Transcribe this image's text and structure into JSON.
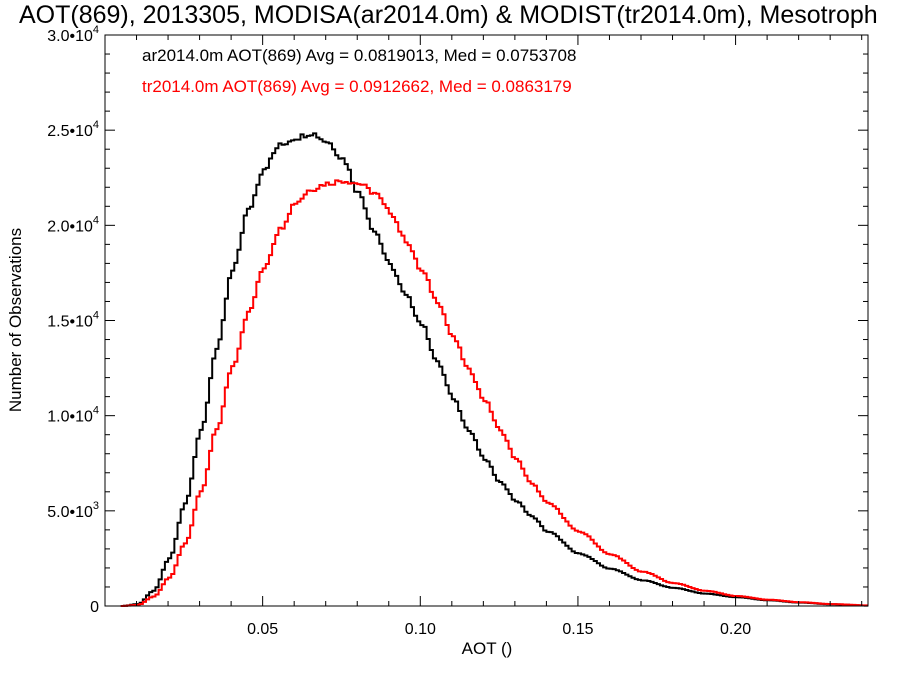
{
  "chart_data": {
    "type": "line",
    "title": "AOT(869), 2013305, MODISA(ar2014.0m) & MODIST(tr2014.0m), Mesotroph",
    "xlabel": "AOT ()",
    "ylabel": "Number of Observations",
    "xlim": [
      0.0,
      0.242
    ],
    "ylim": [
      0,
      30000
    ],
    "xticks": [
      {
        "value": 0.05,
        "label": "0.05"
      },
      {
        "value": 0.1,
        "label": "0.10"
      },
      {
        "value": 0.15,
        "label": "0.15"
      },
      {
        "value": 0.2,
        "label": "0.20"
      }
    ],
    "yticks": [
      {
        "value": 0,
        "base": "0",
        "exp": ""
      },
      {
        "value": 5000,
        "base": "5.0•10",
        "exp": "3"
      },
      {
        "value": 10000,
        "base": "1.0•10",
        "exp": "4"
      },
      {
        "value": 15000,
        "base": "1.5•10",
        "exp": "4"
      },
      {
        "value": 20000,
        "base": "2.0•10",
        "exp": "4"
      },
      {
        "value": 25000,
        "base": "2.5•10",
        "exp": "4"
      },
      {
        "value": 30000,
        "base": "3.0•10",
        "exp": "4"
      }
    ],
    "grid": false,
    "legend_placement": "top-left",
    "series": [
      {
        "name": "ar2014.0m AOT(869) Avg = 0.0819013, Med = 0.0753708",
        "color": "#000000",
        "step": true,
        "x": [
          0.005,
          0.01,
          0.015,
          0.02,
          0.025,
          0.03,
          0.035,
          0.04,
          0.045,
          0.05,
          0.055,
          0.06,
          0.065,
          0.07,
          0.075,
          0.08,
          0.085,
          0.09,
          0.095,
          0.1,
          0.105,
          0.11,
          0.115,
          0.12,
          0.125,
          0.13,
          0.135,
          0.14,
          0.15,
          0.16,
          0.17,
          0.18,
          0.19,
          0.2,
          0.21,
          0.22,
          0.23,
          0.242
        ],
        "y": [
          0,
          100,
          800,
          2500,
          5400,
          9200,
          13500,
          17600,
          20800,
          23000,
          24200,
          24600,
          24850,
          24400,
          23500,
          21700,
          19700,
          17900,
          16300,
          14800,
          12800,
          10900,
          9200,
          7700,
          6500,
          5500,
          4700,
          3900,
          2750,
          1950,
          1350,
          950,
          650,
          460,
          300,
          180,
          90,
          20
        ]
      },
      {
        "name": "tr2014.0m AOT(869) Avg = 0.0912662, Med = 0.0863179",
        "color": "#ff0000",
        "step": true,
        "x": [
          0.005,
          0.01,
          0.015,
          0.02,
          0.025,
          0.03,
          0.035,
          0.04,
          0.045,
          0.05,
          0.055,
          0.06,
          0.065,
          0.07,
          0.075,
          0.08,
          0.085,
          0.09,
          0.095,
          0.1,
          0.105,
          0.11,
          0.115,
          0.12,
          0.125,
          0.13,
          0.135,
          0.14,
          0.15,
          0.16,
          0.17,
          0.18,
          0.19,
          0.2,
          0.21,
          0.22,
          0.23,
          0.242
        ],
        "y": [
          0,
          60,
          500,
          1500,
          3300,
          6000,
          9300,
          12600,
          15400,
          17800,
          19800,
          21200,
          21900,
          22200,
          22350,
          22200,
          21700,
          20700,
          19200,
          17600,
          16000,
          14100,
          12400,
          10800,
          9200,
          7700,
          6400,
          5400,
          3900,
          2700,
          1800,
          1200,
          800,
          520,
          330,
          200,
          100,
          30
        ]
      }
    ]
  }
}
